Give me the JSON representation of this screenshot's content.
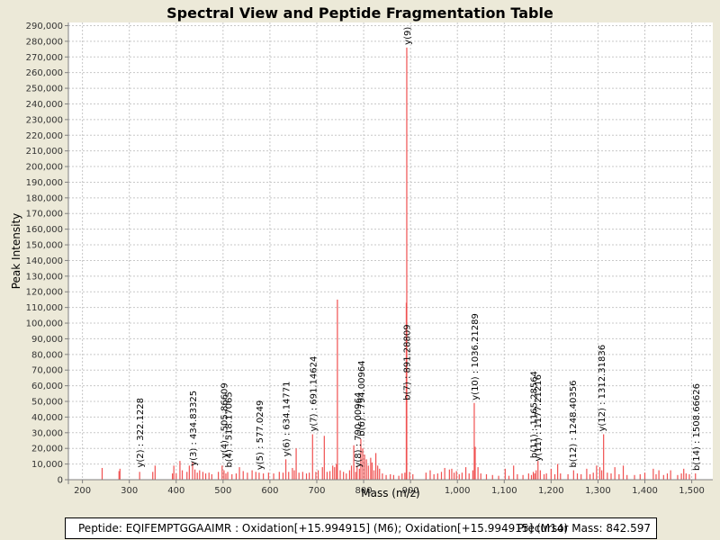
{
  "chart_data": {
    "type": "bar",
    "title": "Spectral View and Peptide Fragmentation Table",
    "xlabel": "Mass (m/z)",
    "ylabel": "Peak Intensity",
    "xlim": [
      170,
      1545
    ],
    "ylim": [
      0,
      292000
    ],
    "x_ticks": [
      200,
      300,
      400,
      500,
      600,
      700,
      800,
      900,
      1000,
      1100,
      1200,
      1300,
      1400,
      1500
    ],
    "x_tick_labels": [
      "200",
      "300",
      "400",
      "500",
      "600",
      "700",
      "800",
      "900",
      "1,000",
      "1,100",
      "1,200",
      "1,300",
      "1,400",
      "1,500"
    ],
    "y_ticks": [
      0,
      10000,
      20000,
      30000,
      40000,
      50000,
      60000,
      70000,
      80000,
      90000,
      100000,
      110000,
      120000,
      130000,
      140000,
      150000,
      160000,
      170000,
      180000,
      190000,
      200000,
      210000,
      220000,
      230000,
      240000,
      250000,
      260000,
      270000,
      280000,
      290000
    ],
    "y_tick_labels": [
      "0",
      "10,000",
      "20,000",
      "30,000",
      "40,000",
      "50,000",
      "60,000",
      "70,000",
      "80,000",
      "90,000",
      "100,000",
      "110,000",
      "120,000",
      "130,000",
      "140,000",
      "150,000",
      "160,000",
      "170,000",
      "180,000",
      "190,000",
      "200,000",
      "210,000",
      "220,000",
      "230,000",
      "240,000",
      "250,000",
      "260,000",
      "270,000",
      "280,000",
      "290,000"
    ],
    "grid": true,
    "bar_color": "#f05050",
    "peaks": [
      [
        242,
        7500
      ],
      [
        278,
        5500
      ],
      [
        280,
        7000
      ],
      [
        322,
        5000
      ],
      [
        350,
        5000
      ],
      [
        355,
        9000
      ],
      [
        392,
        4000
      ],
      [
        395,
        9000
      ],
      [
        400,
        4000
      ],
      [
        408,
        12000
      ],
      [
        413,
        6000
      ],
      [
        423,
        5000
      ],
      [
        428,
        9000
      ],
      [
        435,
        11000
      ],
      [
        440,
        6500
      ],
      [
        445,
        4500
      ],
      [
        450,
        6000
      ],
      [
        457,
        5000
      ],
      [
        463,
        4000
      ],
      [
        470,
        4500
      ],
      [
        476,
        3500
      ],
      [
        490,
        5000
      ],
      [
        498,
        9000
      ],
      [
        502,
        6000
      ],
      [
        506,
        4000
      ],
      [
        510,
        5000
      ],
      [
        519,
        3500
      ],
      [
        528,
        4000
      ],
      [
        535,
        8000
      ],
      [
        543,
        5500
      ],
      [
        552,
        4500
      ],
      [
        562,
        6000
      ],
      [
        570,
        5000
      ],
      [
        577,
        4500
      ],
      [
        586,
        4000
      ],
      [
        597,
        4500
      ],
      [
        608,
        4000
      ],
      [
        620,
        5000
      ],
      [
        628,
        4500
      ],
      [
        634,
        13000
      ],
      [
        640,
        5000
      ],
      [
        648,
        7500
      ],
      [
        652,
        6000
      ],
      [
        656,
        20000
      ],
      [
        662,
        4500
      ],
      [
        670,
        5000
      ],
      [
        678,
        4000
      ],
      [
        684,
        4500
      ],
      [
        691,
        29000
      ],
      [
        698,
        5000
      ],
      [
        703,
        6000
      ],
      [
        712,
        8000
      ],
      [
        716,
        28000
      ],
      [
        722,
        5000
      ],
      [
        728,
        5500
      ],
      [
        734,
        9000
      ],
      [
        738,
        8000
      ],
      [
        742,
        10000
      ],
      [
        744,
        115000
      ],
      [
        750,
        6000
      ],
      [
        757,
        5000
      ],
      [
        763,
        4000
      ],
      [
        770,
        6000
      ],
      [
        774,
        9000
      ],
      [
        779,
        22000
      ],
      [
        783,
        5000
      ],
      [
        786,
        9000
      ],
      [
        791,
        7000
      ],
      [
        794,
        26000
      ],
      [
        798,
        20000
      ],
      [
        802,
        16000
      ],
      [
        806,
        13000
      ],
      [
        810,
        9000
      ],
      [
        815,
        14000
      ],
      [
        818,
        11000
      ],
      [
        822,
        6000
      ],
      [
        826,
        17000
      ],
      [
        830,
        9000
      ],
      [
        834,
        7000
      ],
      [
        840,
        4000
      ],
      [
        848,
        3000
      ],
      [
        857,
        3500
      ],
      [
        864,
        3000
      ],
      [
        875,
        2500
      ],
      [
        882,
        4000
      ],
      [
        888,
        4500
      ],
      [
        891,
        113000
      ],
      [
        892,
        276000
      ],
      [
        898,
        5000
      ],
      [
        905,
        3500
      ],
      [
        933,
        4500
      ],
      [
        942,
        6000
      ],
      [
        950,
        3500
      ],
      [
        958,
        4000
      ],
      [
        966,
        5000
      ],
      [
        973,
        7500
      ],
      [
        983,
        6500
      ],
      [
        988,
        7000
      ],
      [
        993,
        4500
      ],
      [
        998,
        5500
      ],
      [
        1004,
        3500
      ],
      [
        1010,
        4500
      ],
      [
        1018,
        8000
      ],
      [
        1025,
        4000
      ],
      [
        1033,
        6000
      ],
      [
        1036,
        49000
      ],
      [
        1038,
        21000
      ],
      [
        1044,
        8000
      ],
      [
        1050,
        4000
      ],
      [
        1062,
        3500
      ],
      [
        1075,
        3000
      ],
      [
        1088,
        2500
      ],
      [
        1102,
        7000
      ],
      [
        1110,
        2500
      ],
      [
        1120,
        9000
      ],
      [
        1128,
        3500
      ],
      [
        1140,
        3000
      ],
      [
        1152,
        4000
      ],
      [
        1158,
        3000
      ],
      [
        1162,
        5000
      ],
      [
        1165,
        4000
      ],
      [
        1168,
        6000
      ],
      [
        1172,
        12000
      ],
      [
        1177,
        6000
      ],
      [
        1185,
        3500
      ],
      [
        1190,
        4000
      ],
      [
        1200,
        7000
      ],
      [
        1208,
        3500
      ],
      [
        1214,
        10000
      ],
      [
        1220,
        4000
      ],
      [
        1236,
        3500
      ],
      [
        1248,
        6000
      ],
      [
        1256,
        4000
      ],
      [
        1264,
        3500
      ],
      [
        1276,
        7000
      ],
      [
        1283,
        3500
      ],
      [
        1290,
        4500
      ],
      [
        1297,
        9000
      ],
      [
        1304,
        8000
      ],
      [
        1308,
        6000
      ],
      [
        1312,
        29000
      ],
      [
        1320,
        4500
      ],
      [
        1328,
        4000
      ],
      [
        1336,
        8000
      ],
      [
        1345,
        3500
      ],
      [
        1354,
        9000
      ],
      [
        1362,
        3000
      ],
      [
        1378,
        3000
      ],
      [
        1390,
        3500
      ],
      [
        1400,
        4500
      ],
      [
        1418,
        7000
      ],
      [
        1424,
        3500
      ],
      [
        1430,
        6000
      ],
      [
        1440,
        3000
      ],
      [
        1448,
        4000
      ],
      [
        1455,
        6000
      ],
      [
        1470,
        3000
      ],
      [
        1478,
        4000
      ],
      [
        1483,
        7000
      ],
      [
        1488,
        4000
      ],
      [
        1495,
        3500
      ],
      [
        1508,
        4000
      ]
    ],
    "annotations": [
      {
        "mz": 322.1228,
        "height": 6000,
        "label": "y(2) : 322.1228"
      },
      {
        "mz": 434.83325,
        "height": 7000,
        "label": "y(3) : 434.83325"
      },
      {
        "mz": 501.4,
        "height": 12000,
        "label": "y(4) : 505.86609"
      },
      {
        "mz": 510.8,
        "height": 6000,
        "label": "b(4) : 518.17065"
      },
      {
        "mz": 577.0249,
        "height": 4500,
        "label": "y(5) : 577.0249"
      },
      {
        "mz": 634.14771,
        "height": 13000,
        "label": "y(6) : 634.14771"
      },
      {
        "mz": 691.14624,
        "height": 29000,
        "label": "y(7) : 691.14624"
      },
      {
        "mz": 786.0,
        "height": 6000,
        "label": "y(8) : 790.00964"
      },
      {
        "mz": 794.5,
        "height": 26000,
        "label": "b(6) : 794.00964"
      },
      {
        "mz": 891.28809,
        "height": 49000,
        "label": "b(7) : 891.28809"
      },
      {
        "mz": 892.0,
        "height": 276000,
        "label": "y(9)"
      },
      {
        "mz": 1036.21289,
        "height": 49000,
        "label": "y(10) : 1036.21289"
      },
      {
        "mz": 1162.0,
        "height": 12000,
        "label": "b(11) : 1165.28564"
      },
      {
        "mz": 1170.2,
        "height": 10000,
        "label": "y(11) : 1177.21216"
      },
      {
        "mz": 1245.4,
        "height": 6000,
        "label": "b(12) : 1248.40356"
      },
      {
        "mz": 1306.8,
        "height": 29000,
        "label": "y(12) : 1312.31836"
      },
      {
        "mz": 1508.66626,
        "height": 4000,
        "label": "b(14) : 1508.66626"
      }
    ]
  },
  "footer": {
    "peptide": "Peptide: EQIFEMPTGGAAIMR : Oxidation[+15.994915] (M6); Oxidation[+15.994915] (M14)",
    "precursor": "Precursor Mass: 842.597"
  }
}
